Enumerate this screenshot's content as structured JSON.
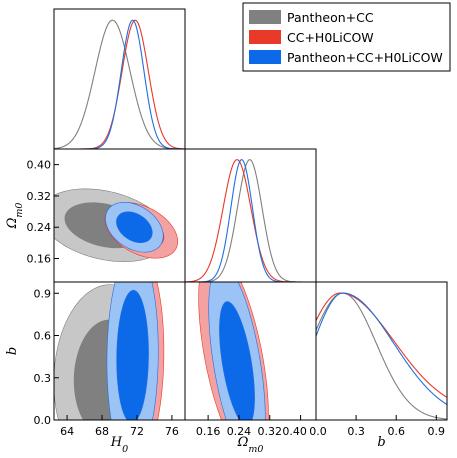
{
  "chart_data": {
    "type": "corner",
    "parameters": [
      "H_0",
      "Omega_m0",
      "b"
    ],
    "axis_labels": {
      "H0": {
        "base": "H",
        "sub": "0"
      },
      "Om": {
        "base": "Ω",
        "sub": "m0"
      },
      "b": {
        "base": "b",
        "sub": ""
      }
    },
    "ranges": {
      "H0": [
        62.5,
        77.5
      ],
      "Om": [
        0.1,
        0.44
      ],
      "b": [
        0.0,
        0.98
      ]
    },
    "ticks": {
      "H0": [
        64,
        68,
        72,
        76
      ],
      "Om_y": [
        0.16,
        0.24,
        0.32,
        0.4
      ],
      "Om_x": [
        0.16,
        0.24,
        0.32
      ],
      "Om_x_last": 0.4,
      "b_y": [
        0.0,
        0.3,
        0.6,
        0.9
      ],
      "b_x": [
        0.0,
        0.3,
        0.6,
        0.9
      ]
    },
    "tick_labels": {
      "H0": [
        "64",
        "68",
        "72",
        "76"
      ],
      "Om_y": [
        "0.16",
        "0.24",
        "0.32",
        "0.40"
      ],
      "Om_x": [
        "0.16",
        "0.24",
        "0.32"
      ],
      "Om_x_last": "0.40",
      "b_y": [
        "0.0",
        "0.3",
        "0.6",
        "0.9"
      ],
      "b_x": [
        "0.0",
        "0.3",
        "0.6",
        "0.9"
      ],
      "b_x_first": "0.0"
    },
    "legend": {
      "placement": "top-right",
      "entries": [
        "Pantheon+CC",
        "CC+H0LiCOW",
        "Pantheon+CC+H0LiCOW"
      ]
    },
    "series": [
      {
        "name": "Pantheon+CC",
        "line_color": "#808080",
        "fill_outer": "#c7c7c7",
        "fill_inner": "#808080",
        "H0": {
          "mean": 69.2,
          "sigma": 2.0
        },
        "Om": {
          "mean": 0.268,
          "sigma": 0.032
        },
        "b": {
          "mode": 0.2,
          "sigma_low": 0.24,
          "sigma_high": 0.25,
          "floor": 0.0
        },
        "H0_Om": {
          "center": [
            68.3,
            0.245
          ],
          "sx": 3.0,
          "sy": 0.038,
          "rho": -0.3
        },
        "H0_b": {
          "center": [
            68.6,
            0.3
          ],
          "sx": 2.5,
          "sy": 0.27,
          "rho": 0.05
        },
        "Om_b": {
          "center": [
            0.228,
            0.34
          ],
          "sx": 0.035,
          "sy": 0.3,
          "rho": -0.7
        }
      },
      {
        "name": "CC+H0LiCOW",
        "line_color": "#e8392a",
        "fill_outer": "#f3a1a1",
        "fill_inner": "#e8392a",
        "H0": {
          "mean": 71.8,
          "sigma": 1.5
        },
        "Om": {
          "mean": 0.235,
          "sigma": 0.036
        },
        "b": {
          "mode": 0.18,
          "sigma_low": 0.25,
          "sigma_high": 0.4,
          "floor": 0.05
        },
        "H0_Om": {
          "center": [
            72.5,
            0.232
          ],
          "sx": 1.7,
          "sy": 0.029,
          "rho": -0.4
        },
        "H0_b": {
          "center": [
            71.9,
            0.45
          ],
          "sx": 1.3,
          "sy": 0.31,
          "rho": 0.05
        },
        "Om_b": {
          "center": [
            0.226,
            0.45
          ],
          "sx": 0.037,
          "sy": 0.31,
          "rho": -0.55
        }
      },
      {
        "name": "Pantheon+CC+H0LiCOW",
        "line_color": "#1f6fe0",
        "fill_outer": "#9cc3f5",
        "fill_inner": "#0c6ae8",
        "H0": {
          "mean": 71.5,
          "sigma": 1.3
        },
        "Om": {
          "mean": 0.247,
          "sigma": 0.028
        },
        "b": {
          "mode": 0.2,
          "sigma_low": 0.22,
          "sigma_high": 0.38,
          "floor": 0.0
        },
        "H0_Om": {
          "center": [
            71.7,
            0.24
          ],
          "sx": 1.35,
          "sy": 0.026,
          "rho": -0.35
        },
        "H0_b": {
          "center": [
            71.5,
            0.45
          ],
          "sx": 1.2,
          "sy": 0.31,
          "rho": 0.05
        },
        "Om_b": {
          "center": [
            0.235,
            0.4
          ],
          "sx": 0.03,
          "sy": 0.29,
          "rho": -0.55
        }
      }
    ],
    "grid": false
  }
}
